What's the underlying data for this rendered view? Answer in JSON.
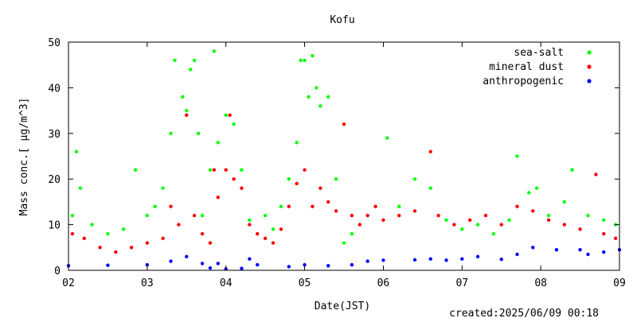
{
  "chart_data": {
    "type": "scatter",
    "title": "Kofu",
    "xlabel": "Date(JST)",
    "ylabel": "Mass conc.[ μg/m^3]",
    "created": "created:2025/06/09 00:18",
    "xlim": [
      2,
      9
    ],
    "ylim": [
      0,
      50
    ],
    "x_ticks": [
      {
        "v": 2,
        "label": "02"
      },
      {
        "v": 3,
        "label": "03"
      },
      {
        "v": 4,
        "label": "04"
      },
      {
        "v": 5,
        "label": "05"
      },
      {
        "v": 6,
        "label": "06"
      },
      {
        "v": 7,
        "label": "07"
      },
      {
        "v": 8,
        "label": "08"
      },
      {
        "v": 9,
        "label": "09"
      }
    ],
    "y_ticks": [
      0,
      10,
      20,
      30,
      40,
      50
    ],
    "grid": false,
    "legend_position": "top-right",
    "series": [
      {
        "name": "sea-salt",
        "color": "#00ff00",
        "points": [
          [
            2.05,
            12
          ],
          [
            2.1,
            26
          ],
          [
            2.15,
            18
          ],
          [
            2.3,
            10
          ],
          [
            2.5,
            8
          ],
          [
            2.7,
            9
          ],
          [
            2.85,
            22
          ],
          [
            3.0,
            12
          ],
          [
            3.1,
            14
          ],
          [
            3.2,
            18
          ],
          [
            3.3,
            30
          ],
          [
            3.35,
            46
          ],
          [
            3.45,
            38
          ],
          [
            3.5,
            35
          ],
          [
            3.55,
            44
          ],
          [
            3.6,
            46
          ],
          [
            3.65,
            30
          ],
          [
            3.7,
            12
          ],
          [
            3.8,
            22
          ],
          [
            3.85,
            48
          ],
          [
            3.9,
            28
          ],
          [
            4.0,
            34
          ],
          [
            4.1,
            32
          ],
          [
            4.2,
            22
          ],
          [
            4.3,
            11
          ],
          [
            4.5,
            12
          ],
          [
            4.6,
            9
          ],
          [
            4.7,
            14
          ],
          [
            4.8,
            20
          ],
          [
            4.9,
            28
          ],
          [
            4.95,
            46
          ],
          [
            5.0,
            46
          ],
          [
            5.05,
            38
          ],
          [
            5.1,
            47
          ],
          [
            5.15,
            40
          ],
          [
            5.2,
            36
          ],
          [
            5.3,
            38
          ],
          [
            5.4,
            20
          ],
          [
            5.5,
            6
          ],
          [
            5.6,
            8
          ],
          [
            5.7,
            10
          ],
          [
            5.9,
            14
          ],
          [
            6.05,
            29
          ],
          [
            6.2,
            14
          ],
          [
            6.4,
            20
          ],
          [
            6.6,
            18
          ],
          [
            6.8,
            11
          ],
          [
            7.0,
            9
          ],
          [
            7.2,
            10
          ],
          [
            7.4,
            8
          ],
          [
            7.6,
            11
          ],
          [
            7.7,
            25
          ],
          [
            7.85,
            17
          ],
          [
            7.95,
            18
          ],
          [
            8.1,
            12
          ],
          [
            8.3,
            15
          ],
          [
            8.4,
            22
          ],
          [
            8.6,
            12
          ],
          [
            8.8,
            11
          ],
          [
            8.95,
            10
          ]
        ]
      },
      {
        "name": "mineral dust",
        "color": "#ff0000",
        "points": [
          [
            2.05,
            8
          ],
          [
            2.2,
            7
          ],
          [
            2.4,
            5
          ],
          [
            2.6,
            4
          ],
          [
            2.8,
            5
          ],
          [
            3.0,
            6
          ],
          [
            3.2,
            7
          ],
          [
            3.3,
            14
          ],
          [
            3.4,
            10
          ],
          [
            3.5,
            34
          ],
          [
            3.6,
            12
          ],
          [
            3.7,
            8
          ],
          [
            3.8,
            6
          ],
          [
            3.85,
            22
          ],
          [
            3.9,
            16
          ],
          [
            4.0,
            22
          ],
          [
            4.05,
            34
          ],
          [
            4.1,
            20
          ],
          [
            4.2,
            18
          ],
          [
            4.3,
            10
          ],
          [
            4.4,
            8
          ],
          [
            4.5,
            7
          ],
          [
            4.6,
            6
          ],
          [
            4.7,
            9
          ],
          [
            4.8,
            14
          ],
          [
            4.9,
            19
          ],
          [
            5.0,
            22
          ],
          [
            5.1,
            14
          ],
          [
            5.2,
            18
          ],
          [
            5.3,
            15
          ],
          [
            5.4,
            13
          ],
          [
            5.5,
            32
          ],
          [
            5.6,
            12
          ],
          [
            5.7,
            10
          ],
          [
            5.8,
            12
          ],
          [
            5.9,
            14
          ],
          [
            6.0,
            11
          ],
          [
            6.2,
            12
          ],
          [
            6.4,
            13
          ],
          [
            6.6,
            26
          ],
          [
            6.7,
            12
          ],
          [
            6.9,
            10
          ],
          [
            7.1,
            11
          ],
          [
            7.3,
            12
          ],
          [
            7.5,
            10
          ],
          [
            7.7,
            14
          ],
          [
            7.9,
            13
          ],
          [
            8.1,
            11
          ],
          [
            8.3,
            10
          ],
          [
            8.5,
            9
          ],
          [
            8.7,
            21
          ],
          [
            8.8,
            8
          ],
          [
            8.95,
            7
          ]
        ]
      },
      {
        "name": "anthropogenic",
        "color": "#0000ff",
        "points": [
          [
            2.0,
            1.0
          ],
          [
            2.5,
            1.1
          ],
          [
            3.0,
            1.2
          ],
          [
            3.3,
            2.0
          ],
          [
            3.5,
            3.0
          ],
          [
            3.7,
            1.5
          ],
          [
            3.8,
            0.5
          ],
          [
            3.9,
            1.5
          ],
          [
            4.0,
            0.3
          ],
          [
            4.2,
            0.4
          ],
          [
            4.3,
            2.5
          ],
          [
            4.4,
            1.2
          ],
          [
            4.8,
            0.8
          ],
          [
            5.0,
            1.2
          ],
          [
            5.3,
            1.0
          ],
          [
            5.6,
            1.2
          ],
          [
            5.8,
            2.0
          ],
          [
            6.0,
            2.2
          ],
          [
            6.4,
            2.3
          ],
          [
            6.6,
            2.5
          ],
          [
            6.8,
            2.2
          ],
          [
            7.0,
            2.5
          ],
          [
            7.2,
            3.0
          ],
          [
            7.5,
            2.4
          ],
          [
            7.7,
            3.5
          ],
          [
            7.9,
            5.0
          ],
          [
            8.2,
            4.5
          ],
          [
            8.5,
            4.5
          ],
          [
            8.6,
            3.5
          ],
          [
            8.8,
            4.0
          ],
          [
            9.0,
            4.5
          ]
        ]
      }
    ]
  }
}
